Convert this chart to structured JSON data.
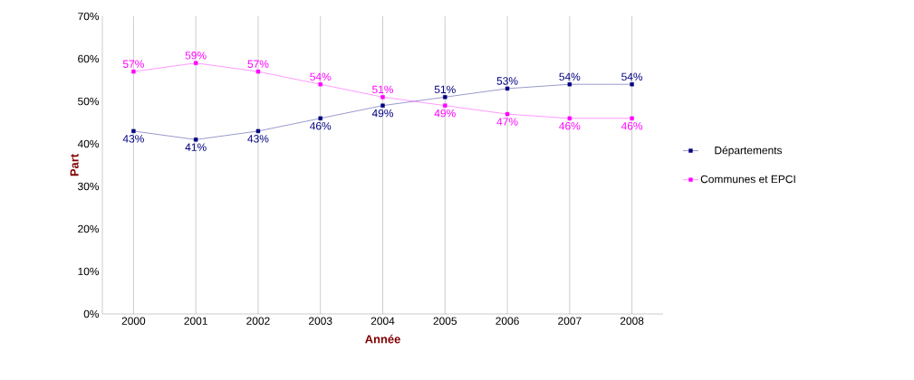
{
  "chart_data": {
    "type": "line",
    "xlabel": "Année",
    "ylabel": "Part",
    "categories": [
      "2000",
      "2001",
      "2002",
      "2003",
      "2004",
      "2005",
      "2006",
      "2007",
      "2008"
    ],
    "series": [
      {
        "name": "Départements",
        "color": "#000080",
        "values": [
          43,
          41,
          43,
          46,
          49,
          51,
          53,
          54,
          54
        ],
        "value_labels": [
          "43%",
          "41%",
          "43%",
          "46%",
          "49%",
          "51%",
          "53%",
          "54%",
          "54%"
        ]
      },
      {
        "name": "Communes et EPCI",
        "color": "#ff00ff",
        "values": [
          57,
          59,
          57,
          54,
          51,
          49,
          47,
          46,
          46
        ],
        "value_labels": [
          "57%",
          "59%",
          "57%",
          "54%",
          "51%",
          "49%",
          "47%",
          "46%",
          "46%"
        ]
      }
    ],
    "ylim": [
      0,
      70
    ],
    "yticks": [
      {
        "value": 0,
        "label": "0%"
      },
      {
        "value": 10,
        "label": "10%"
      },
      {
        "value": 20,
        "label": "20%"
      },
      {
        "value": 30,
        "label": "30%"
      },
      {
        "value": 40,
        "label": "40%"
      },
      {
        "value": 50,
        "label": "50%"
      },
      {
        "value": 60,
        "label": "60%"
      },
      {
        "value": 70,
        "label": "70%"
      }
    ],
    "grid": "x",
    "legend": "right",
    "marker": "square",
    "line_style": "solid"
  }
}
